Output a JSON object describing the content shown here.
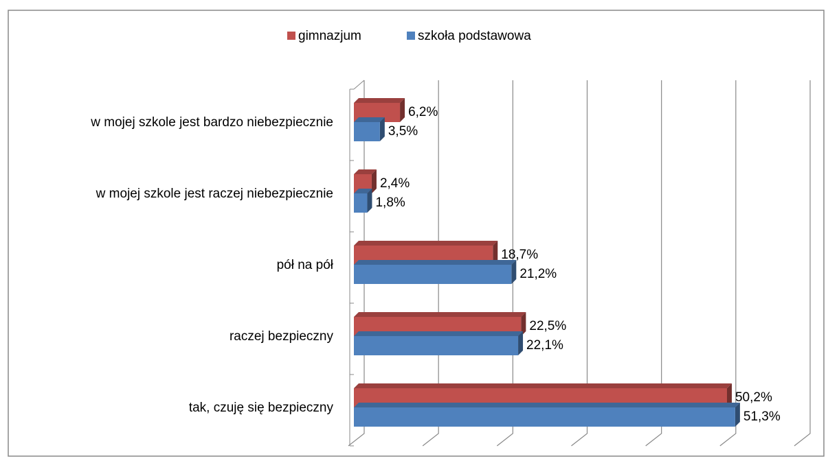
{
  "chart_data": {
    "type": "bar3d_horizontal",
    "categories": [
      "w mojej szkole jest bardzo niebezpiecznie",
      "w mojej szkole jest raczej niebezpiecznie",
      "pół na pół",
      "raczej bezpieczny",
      "tak, czuję się bezpieczny"
    ],
    "series": [
      {
        "name": "gimnazjum",
        "color": "#c0504d",
        "values": [
          6.2,
          2.4,
          18.7,
          22.5,
          50.2
        ],
        "value_labels": [
          "6,2%",
          "2,4%",
          "18,7%",
          "22,5%",
          "50,2%"
        ]
      },
      {
        "name": "szkoła podstawowa",
        "color": "#4f81bd",
        "values": [
          3.5,
          1.8,
          21.2,
          22.1,
          51.3
        ],
        "value_labels": [
          "3,5%",
          "1,8%",
          "21,2%",
          "22,1%",
          "51,3%"
        ]
      }
    ],
    "xlim": [
      0,
      60
    ],
    "xticks": [
      0,
      10,
      20,
      30,
      40,
      50,
      60
    ],
    "grid": true,
    "legend": "top"
  }
}
